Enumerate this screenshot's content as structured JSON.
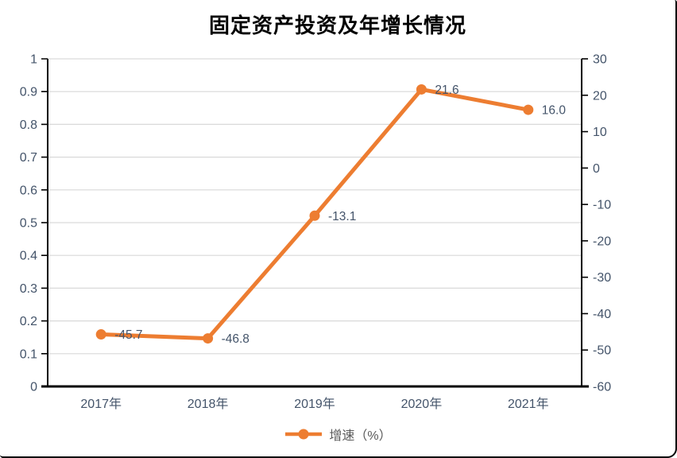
{
  "chart_data": {
    "type": "line",
    "title": "固定资产投资及年增长情况",
    "categories": [
      "2017年",
      "2018年",
      "2019年",
      "2020年",
      "2021年"
    ],
    "series": [
      {
        "name": "增速（%）",
        "axis": "secondary",
        "values": [
          -45.7,
          -46.8,
          -13.1,
          21.6,
          16.0
        ],
        "data_labels": [
          "-45.7",
          "-46.8",
          "-13.1",
          "21.6",
          "16.0"
        ],
        "color": "#ED7D31",
        "marker": "circle"
      }
    ],
    "primary_y_axis": {
      "side": "left",
      "min": 0,
      "max": 1,
      "step": 0.1,
      "tick_labels": [
        "1",
        "0.9",
        "0.8",
        "0.7",
        "0.6",
        "0.5",
        "0.4",
        "0.3",
        "0.2",
        "0.1",
        "0"
      ]
    },
    "secondary_y_axis": {
      "side": "right",
      "min": -60,
      "max": 30,
      "step": 10,
      "tick_labels": [
        "30",
        "20",
        "10",
        "0",
        "-10",
        "-20",
        "-30",
        "-40",
        "-50",
        "-60"
      ]
    },
    "grid": true,
    "legend": {
      "position": "bottom",
      "entries": [
        "增速（%）"
      ]
    },
    "colors": {
      "series_line": "#ED7D31",
      "gridline": "#D9D9D9",
      "axis_line": "#000000",
      "tick_label": "#44546A",
      "data_label": "#44546A",
      "legend_text": "#595959",
      "title": "#000000"
    }
  }
}
